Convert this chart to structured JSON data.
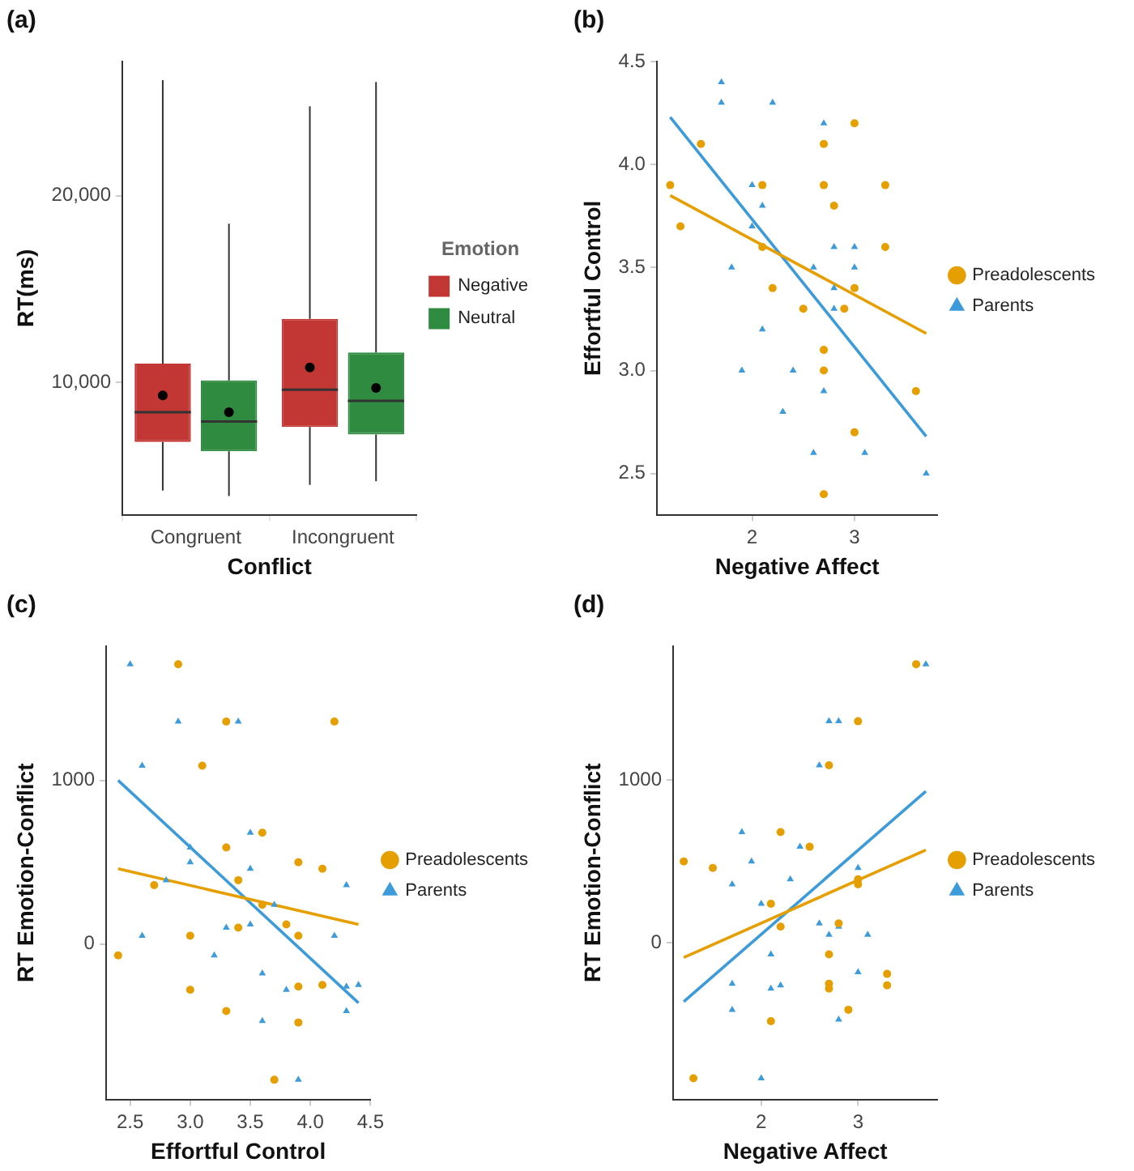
{
  "chart_data": [
    {
      "type": "box",
      "title": "(a)",
      "xlabel": "Conflict",
      "ylabel": "RT(ms)",
      "categories": [
        "Congruent",
        "Incongruent"
      ],
      "ylim": [
        2900,
        27200
      ],
      "yticks": [
        {
          "value": 10000,
          "label": "10,000"
        },
        {
          "value": 20000,
          "label": "20,000"
        }
      ],
      "grid": false,
      "legend": "right",
      "legend_title": "Emotion",
      "series": [
        {
          "name": "Negative",
          "color": "#c23634",
          "boxes": [
            {
              "low": 4200,
              "q1": 6800,
              "median": 8400,
              "q3": 11000,
              "high": 26200,
              "mean": 9300
            },
            {
              "low": 4500,
              "q1": 7600,
              "median": 9600,
              "q3": 13400,
              "high": 24800,
              "mean": 10800
            }
          ]
        },
        {
          "name": "Neutral",
          "color": "#2e8b3f",
          "boxes": [
            {
              "low": 3900,
              "q1": 6300,
              "median": 7900,
              "q3": 10100,
              "high": 18500,
              "mean": 8400
            },
            {
              "low": 4700,
              "q1": 7200,
              "median": 9000,
              "q3": 11600,
              "high": 26100,
              "mean": 9700
            }
          ]
        }
      ]
    },
    {
      "type": "scatter",
      "title": "(b)",
      "xlabel": "Negative Affect",
      "ylabel": "Effortful Control",
      "xlim": [
        1.07,
        3.81
      ],
      "ylim": [
        2.3,
        4.5
      ],
      "xticks": [
        2,
        3
      ],
      "yticks": [
        2.5,
        {
          "value": 3,
          "label": "3.0"
        },
        3.5,
        {
          "value": 4,
          "label": "4.0"
        },
        4.5
      ],
      "grid": false,
      "legend": "right",
      "series": [
        {
          "name": "Preadolescents",
          "color": "#e69f00",
          "marker": "circle",
          "x": [
            1.2,
            1.3,
            1.5,
            2.1,
            2.1,
            2.2,
            2.5,
            2.7,
            2.7,
            2.8,
            2.7,
            2.7,
            2.7,
            2.9,
            3.0,
            3.0,
            3.0,
            3.3,
            3.3,
            3.6
          ],
          "values": [
            3.9,
            3.7,
            4.1,
            3.9,
            3.6,
            3.4,
            3.3,
            4.1,
            3.9,
            3.8,
            3.1,
            3.0,
            2.4,
            3.3,
            4.2,
            3.4,
            2.7,
            3.9,
            3.6,
            2.9
          ]
        },
        {
          "name": "Parents",
          "color": "#3c9bd8",
          "marker": "triangle",
          "x": [
            1.7,
            1.7,
            2.2,
            2.7,
            2.0,
            2.1,
            2.0,
            1.8,
            2.6,
            2.8,
            3.0,
            3.0,
            2.8,
            2.8,
            2.1,
            1.9,
            2.4,
            2.7,
            2.3,
            2.6,
            3.1,
            3.7
          ],
          "values": [
            4.4,
            4.3,
            4.3,
            4.2,
            3.9,
            3.8,
            3.7,
            3.5,
            3.5,
            3.6,
            3.6,
            3.5,
            3.4,
            3.3,
            3.2,
            3.0,
            3.0,
            2.9,
            2.8,
            2.6,
            2.6,
            2.5
          ]
        },
        {
          "type": "line",
          "color": "#e69f00",
          "marker": "none",
          "x": [
            1.2,
            3.7
          ],
          "values": [
            3.85,
            3.18
          ]
        },
        {
          "type": "line",
          "color": "#3c9bd8",
          "marker": "none",
          "x": [
            1.2,
            3.7
          ],
          "values": [
            4.23,
            2.68
          ]
        }
      ]
    },
    {
      "type": "scatter",
      "title": "(c)",
      "xlabel": "Effortful Control",
      "ylabel": "RT Emotion-Conflict",
      "xlim": [
        2.3,
        4.5
      ],
      "ylim": [
        -950,
        1820
      ],
      "xticks": [
        2.5,
        {
          "value": 3,
          "label": "3.0"
        },
        3.5,
        {
          "value": 4,
          "label": "4.0"
        },
        4.5
      ],
      "yticks": [
        0,
        1000
      ],
      "grid": false,
      "legend": "right",
      "series": [
        {
          "name": "Preadolescents",
          "color": "#e69f00",
          "marker": "circle",
          "x": [
            2.9,
            3.3,
            4.2,
            3.1,
            3.6,
            3.3,
            3.9,
            4.1,
            3.4,
            2.7,
            3.6,
            3.8,
            3.4,
            3.0,
            3.9,
            2.4,
            3.0,
            3.9,
            4.1,
            3.3,
            3.9,
            3.7
          ],
          "values": [
            1710,
            1360,
            1360,
            1090,
            680,
            590,
            500,
            460,
            390,
            360,
            240,
            120,
            100,
            50,
            50,
            -70,
            -280,
            -260,
            -250,
            -410,
            -480,
            -830
          ]
        },
        {
          "name": "Parents",
          "color": "#3c9bd8",
          "marker": "triangle",
          "x": [
            2.5,
            2.9,
            2.6,
            3.4,
            3.0,
            3.0,
            2.8,
            3.5,
            3.5,
            3.7,
            3.3,
            3.5,
            2.6,
            4.2,
            4.3,
            3.2,
            3.6,
            3.8,
            4.3,
            4.4,
            4.3,
            3.6,
            3.9
          ],
          "values": [
            1710,
            1360,
            1090,
            1360,
            590,
            500,
            390,
            680,
            460,
            240,
            100,
            120,
            50,
            50,
            360,
            -70,
            -180,
            -280,
            -260,
            -250,
            -410,
            -470,
            -830
          ]
        },
        {
          "type": "line",
          "color": "#e69f00",
          "marker": "none",
          "x": [
            2.4,
            4.4
          ],
          "values": [
            460,
            120
          ]
        },
        {
          "type": "line",
          "color": "#3c9bd8",
          "marker": "none",
          "x": [
            2.4,
            4.4
          ],
          "values": [
            1000,
            -360
          ]
        }
      ]
    },
    {
      "type": "scatter",
      "title": "(d)",
      "xlabel": "Negative Affect",
      "ylabel": "RT Emotion-Conflict",
      "xlim": [
        1.09,
        3.82
      ],
      "ylim": [
        -960,
        1820
      ],
      "xticks": [
        2,
        3
      ],
      "yticks": [
        0,
        1000
      ],
      "grid": false,
      "legend": "right",
      "series": [
        {
          "name": "Preadolescents",
          "color": "#e69f00",
          "marker": "circle",
          "x": [
            3.6,
            3.0,
            2.7,
            2.2,
            2.5,
            1.2,
            1.5,
            3.0,
            3.0,
            2.1,
            2.8,
            2.2,
            2.7,
            3.3,
            2.7,
            2.7,
            3.3,
            2.9,
            2.1,
            1.3
          ],
          "values": [
            1710,
            1360,
            1090,
            680,
            590,
            500,
            460,
            390,
            360,
            240,
            120,
            100,
            -70,
            -190,
            -250,
            -280,
            -260,
            -410,
            -480,
            -830
          ]
        },
        {
          "name": "Parents",
          "color": "#3c9bd8",
          "marker": "triangle",
          "x": [
            3.7,
            2.7,
            2.8,
            2.6,
            1.8,
            1.9,
            2.4,
            1.7,
            2.3,
            2.0,
            3.0,
            2.6,
            2.7,
            2.8,
            3.1,
            2.1,
            1.7,
            2.2,
            2.1,
            3.0,
            1.7,
            2.8,
            2.0
          ],
          "values": [
            1710,
            1360,
            1360,
            1090,
            680,
            500,
            590,
            360,
            390,
            240,
            460,
            120,
            50,
            100,
            50,
            -70,
            -250,
            -260,
            -280,
            -180,
            -410,
            -470,
            -830
          ]
        },
        {
          "type": "line",
          "color": "#e69f00",
          "marker": "none",
          "x": [
            1.2,
            3.7
          ],
          "values": [
            -90,
            570
          ]
        },
        {
          "type": "line",
          "color": "#3c9bd8",
          "marker": "none",
          "x": [
            1.2,
            3.7
          ],
          "values": [
            -360,
            930
          ]
        }
      ]
    }
  ]
}
